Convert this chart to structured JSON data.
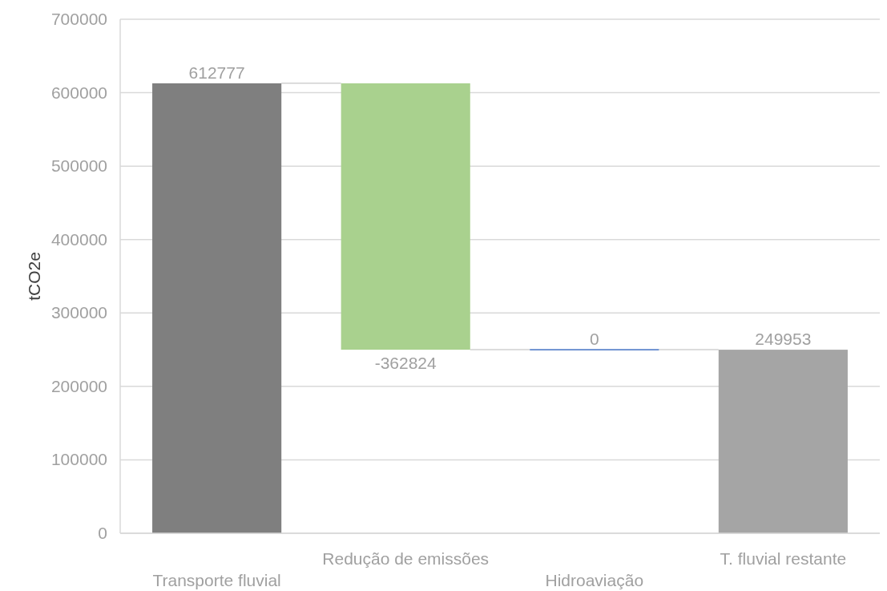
{
  "chart_data": {
    "type": "bar",
    "ylabel": "tCO2e",
    "categories": [
      "Transporte fluvial",
      "Redução de emissões",
      "Hidroaviação",
      "T. fluvial restante"
    ],
    "values": [
      612777,
      -362824,
      0,
      249953
    ],
    "base": [
      0,
      612777,
      249953,
      0
    ],
    "colors": [
      "#7f7f7f",
      "#a9d18e",
      "#4472c4",
      "#a5a5a5"
    ],
    "ylim": [
      0,
      700000
    ],
    "yticks": [
      0,
      100000,
      200000,
      300000,
      400000,
      500000,
      600000,
      700000
    ],
    "grid": "y",
    "data_labels": true
  }
}
